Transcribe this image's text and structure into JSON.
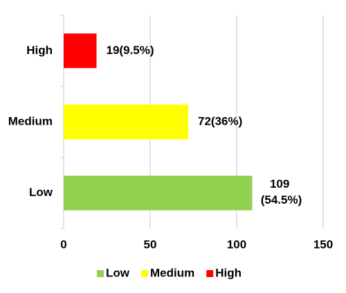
{
  "chart_data": {
    "type": "bar",
    "orientation": "horizontal",
    "categories": [
      "Low",
      "Medium",
      "High"
    ],
    "values": [
      109,
      72,
      19
    ],
    "value_labels": [
      "109 (54.5%)",
      "72(36%)",
      "19(9.5%)"
    ],
    "colors": [
      "#92d050",
      "#ffff00",
      "#ff0000"
    ],
    "xlim": [
      0,
      150
    ],
    "xticks": [
      0,
      50,
      100,
      150
    ],
    "grid": true,
    "legend": "bottom"
  }
}
